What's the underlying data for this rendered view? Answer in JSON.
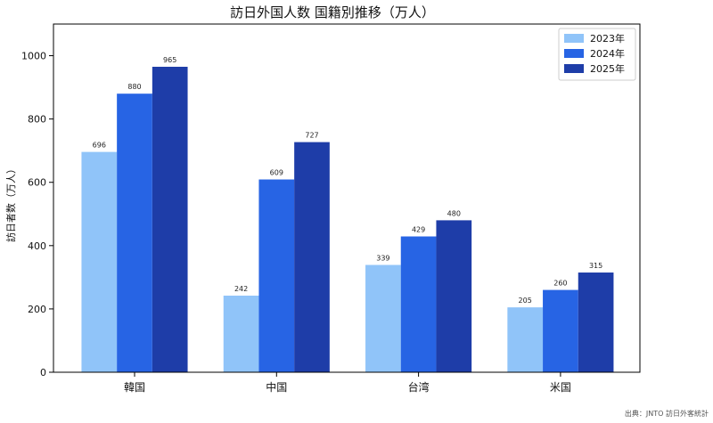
{
  "chart_data": {
    "type": "bar",
    "title": "訪日外国人数 国籍別推移（万人）",
    "xlabel": "",
    "ylabel": "訪日者数（万人）",
    "categories": [
      "韓国",
      "中国",
      "台湾",
      "米国"
    ],
    "series": [
      {
        "name": "2023年",
        "values": [
          696,
          242,
          339,
          205
        ],
        "color": "#90c4f9"
      },
      {
        "name": "2024年",
        "values": [
          880,
          609,
          429,
          260
        ],
        "color": "#2764e4"
      },
      {
        "name": "2025年",
        "values": [
          965,
          727,
          480,
          315
        ],
        "color": "#1e3da8"
      }
    ],
    "ylim": [
      0,
      1100
    ],
    "yticks": [
      0,
      200,
      400,
      600,
      800,
      1000
    ],
    "grid": false,
    "legend_position": "top-right",
    "source_note": "出典：JNTO 訪日外客統計"
  }
}
